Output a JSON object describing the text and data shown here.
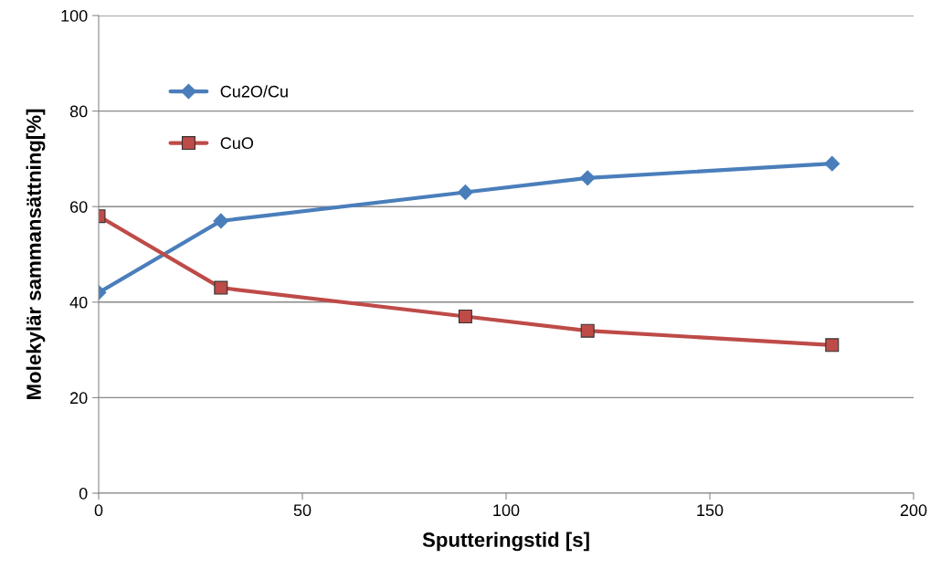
{
  "chart_data": {
    "type": "line",
    "xlabel": "Sputteringstid [s]",
    "ylabel": "Molekylär sammansättning[%]",
    "series": [
      {
        "name": "Cu2O/Cu",
        "color": "#4a7ebb",
        "marker": "diamond",
        "x": [
          0,
          30,
          90,
          120,
          180
        ],
        "values": [
          42,
          57,
          63,
          66,
          69
        ]
      },
      {
        "name": "CuO",
        "color": "#be4b48",
        "marker": "square",
        "x": [
          0,
          30,
          90,
          120,
          180
        ],
        "values": [
          58,
          43,
          37,
          34,
          31
        ]
      }
    ],
    "xlim": [
      0,
      200
    ],
    "xticks": [
      0,
      50,
      100,
      150,
      200
    ],
    "ylim": [
      0,
      100
    ],
    "yticks": [
      0,
      20,
      40,
      60,
      80,
      100
    ],
    "grid": "y",
    "legend": "top left",
    "line_style": "solid"
  }
}
